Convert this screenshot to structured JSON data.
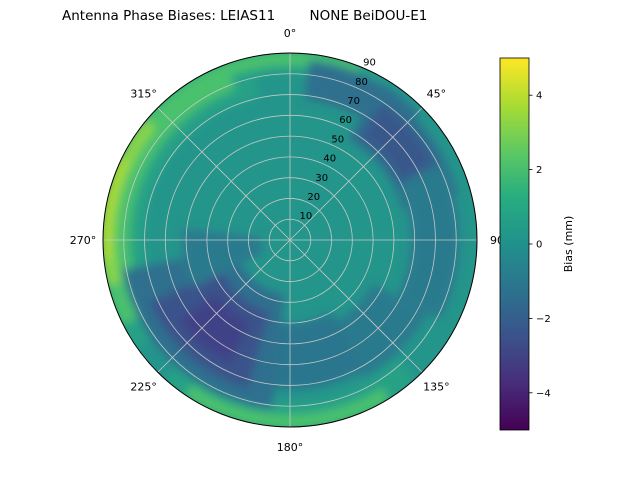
{
  "title": "Antenna Phase Biases: LEIAS11        NONE BeiDOU-E1",
  "chart_data": {
    "type": "polar_contour",
    "description": "Polar (azimuth vs zenith) filled-contour map of antenna phase bias in mm",
    "theta_angles": [
      0,
      45,
      90,
      135,
      180,
      225,
      270,
      315
    ],
    "theta_labels": [
      "0°",
      "45°",
      "90",
      "135°",
      "180°",
      "225°",
      "270°",
      "315°"
    ],
    "r_ticks": [
      10,
      20,
      30,
      40,
      50,
      60,
      70,
      80,
      90
    ],
    "r_max": 90,
    "rlabel_angle": 22.5,
    "base_color": "#24958b",
    "grid_color": "#cccccc",
    "boundary_color": "#000000",
    "colorbar": {
      "label": "Bias (mm)",
      "ticks": [
        4,
        2,
        0,
        -2,
        -4
      ],
      "vmin": -5,
      "vmax": 5,
      "stops": [
        "#440154",
        "#472d7b",
        "#3b528b",
        "#2c728e",
        "#21918c",
        "#27ad81",
        "#5ec962",
        "#aadc32",
        "#fde725"
      ]
    },
    "regions": [
      {
        "a0": 235,
        "a1": 348,
        "r0": 70,
        "r1": 91,
        "value_mm": 1,
        "color": "#25a186"
      },
      {
        "a0": -40,
        "a1": 30,
        "r0": 80,
        "r1": 91,
        "value_mm": 1,
        "color": "#25a186"
      },
      {
        "a0": 138,
        "a1": 222,
        "r0": 78,
        "r1": 91,
        "value_mm": 1,
        "color": "#25a186"
      },
      {
        "a0": 243,
        "a1": 340,
        "r0": 77,
        "r1": 91,
        "value_mm": 2,
        "color": "#4ac16d"
      },
      {
        "a0": -30,
        "a1": 22,
        "r0": 84,
        "r1": 91,
        "value_mm": 2,
        "color": "#4ac16d"
      },
      {
        "a0": 148,
        "a1": 214,
        "r0": 84,
        "r1": 91,
        "value_mm": 2,
        "color": "#4ac16d"
      },
      {
        "a0": 256,
        "a1": 310,
        "r0": 84,
        "r1": 91,
        "value_mm": 3.5,
        "color": "#89d548"
      },
      {
        "a0": 264,
        "a1": 296,
        "r0": 87,
        "r1": 91,
        "value_mm": 4.2,
        "color": "#b5dd2b"
      },
      {
        "a0": 6,
        "a1": 46,
        "r0": 68,
        "r1": 87,
        "value_mm": -1.5,
        "color": "#2e6f8e"
      },
      {
        "a0": 30,
        "a1": 75,
        "r0": 56,
        "r1": 84,
        "value_mm": -1.5,
        "color": "#2e6f8e"
      },
      {
        "a0": 34,
        "a1": 62,
        "r0": 60,
        "r1": 79,
        "value_mm": -2.2,
        "color": "#37588c"
      },
      {
        "a0": 64,
        "a1": 118,
        "r0": 58,
        "r1": 82,
        "value_mm": -0.8,
        "color": "#2b7a8e"
      },
      {
        "a0": 118,
        "a1": 152,
        "r0": 45,
        "r1": 75,
        "value_mm": -0.8,
        "color": "#2b7a8e"
      },
      {
        "a0": 150,
        "a1": 200,
        "r0": 40,
        "r1": 72,
        "value_mm": -1,
        "color": "#2a768e"
      },
      {
        "a0": 186,
        "a1": 260,
        "r0": 26,
        "r1": 82,
        "value_mm": -1.5,
        "color": "#2e6f8e"
      },
      {
        "a0": 196,
        "a1": 246,
        "r0": 36,
        "r1": 74,
        "value_mm": -2.5,
        "color": "#3b528b"
      },
      {
        "a0": 206,
        "a1": 234,
        "r0": 44,
        "r1": 66,
        "value_mm": -3.2,
        "color": "#414287"
      },
      {
        "a0": 244,
        "a1": 276,
        "r0": 14,
        "r1": 52,
        "value_mm": -0.8,
        "color": "#2b7a8e"
      }
    ]
  }
}
